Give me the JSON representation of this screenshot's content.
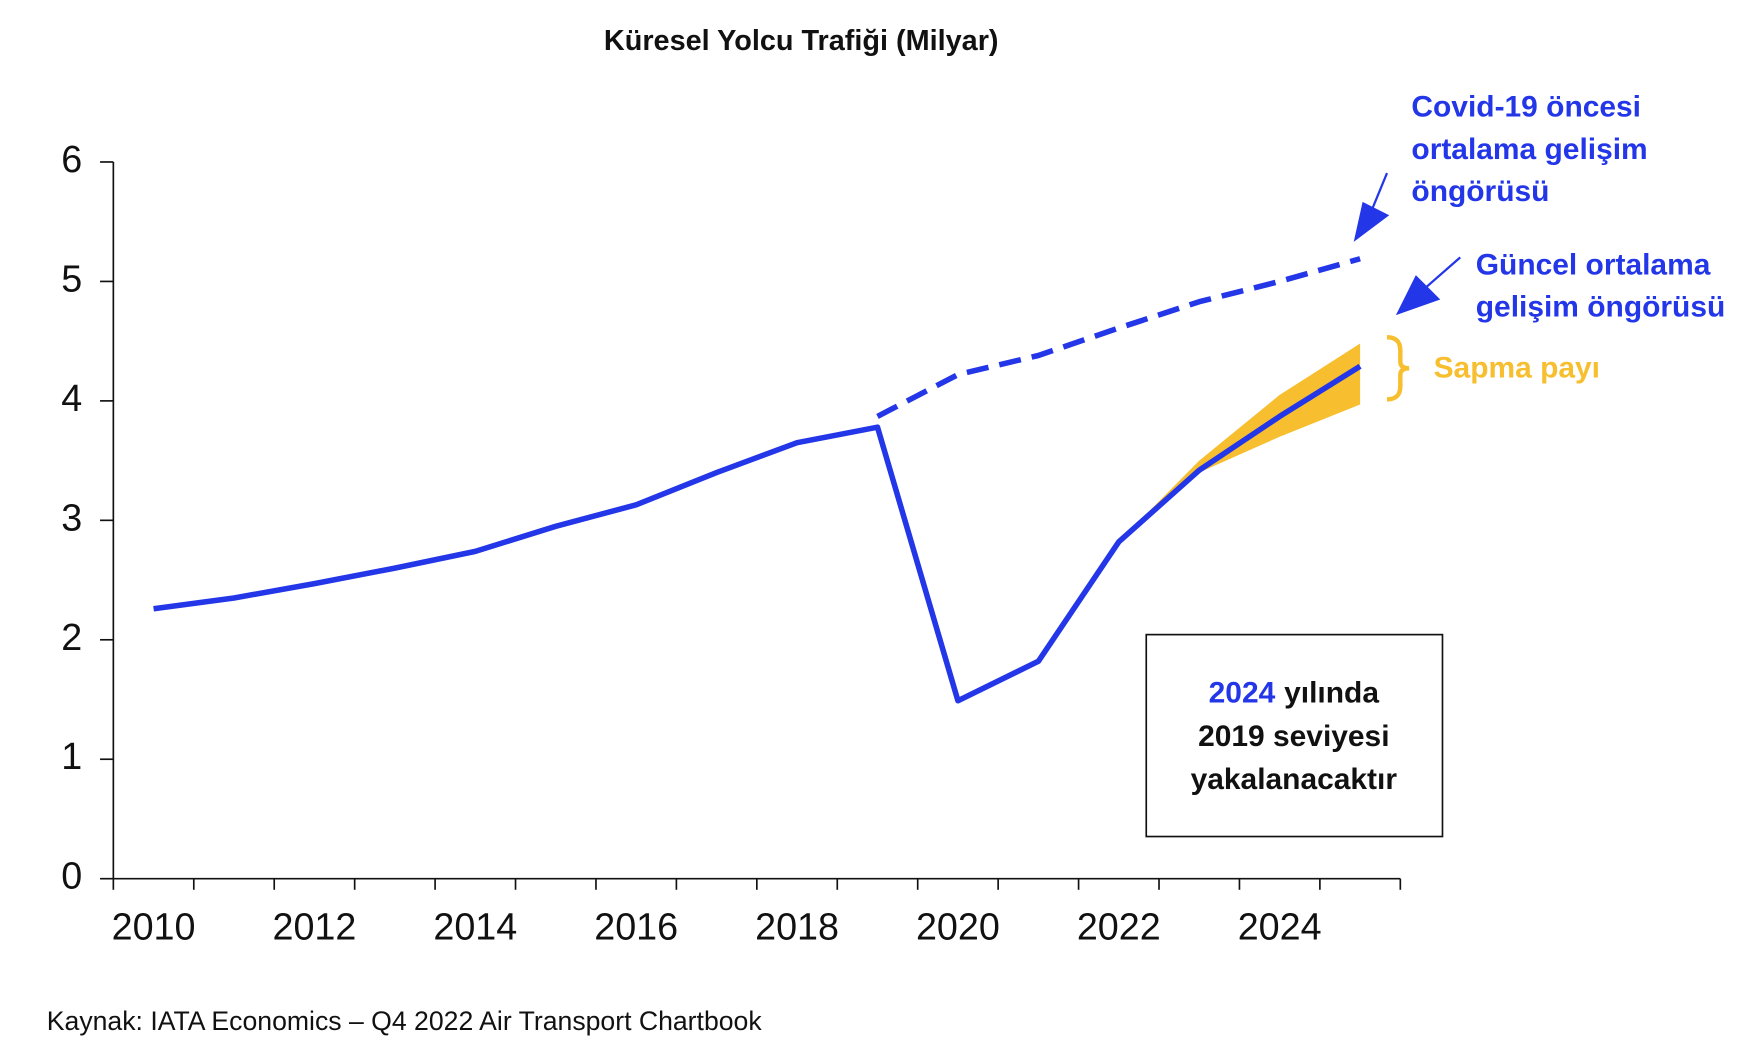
{
  "chart_data": {
    "type": "line",
    "title": "Küresel Yolcu Trafiği (Milyar)",
    "x": [
      2010,
      2011,
      2012,
      2013,
      2014,
      2015,
      2016,
      2017,
      2018,
      2019,
      2020,
      2021,
      2022,
      2023,
      2024,
      2025
    ],
    "series": [
      {
        "name": "Güncel ortalama gelişim öngörüsü",
        "color": "#2336e8",
        "style": "solid",
        "x": [
          2010,
          2011,
          2012,
          2013,
          2014,
          2015,
          2016,
          2017,
          2018,
          2019,
          2020,
          2021,
          2022,
          2023,
          2024,
          2025
        ],
        "values": [
          2.26,
          2.35,
          2.47,
          2.6,
          2.74,
          2.95,
          3.13,
          3.4,
          3.65,
          3.78,
          1.49,
          1.82,
          2.82,
          3.42,
          3.87,
          4.29
        ]
      },
      {
        "name": "Covid-19 öncesi ortalama gelişim öngörüsü",
        "color": "#2336e8",
        "style": "dashed",
        "x": [
          2019,
          2020,
          2021,
          2022,
          2023,
          2024,
          2025
        ],
        "values": [
          3.87,
          4.22,
          4.38,
          4.61,
          4.83,
          5.0,
          5.19
        ]
      }
    ],
    "band": {
      "name": "Sapma payı",
      "color": "#f7bf2f",
      "x": [
        2022,
        2023,
        2024,
        2025
      ],
      "lower": [
        2.82,
        3.4,
        3.7,
        3.97
      ],
      "upper": [
        2.82,
        3.5,
        4.05,
        4.48
      ]
    },
    "xlim": [
      2009.5,
      2025.5
    ],
    "xticks": [
      2010,
      2012,
      2014,
      2016,
      2018,
      2020,
      2022,
      2024
    ],
    "xtick_marks": [
      2009.5,
      2010.5,
      2011.5,
      2012.5,
      2013.5,
      2014.5,
      2015.5,
      2016.5,
      2017.5,
      2018.5,
      2019.5,
      2020.5,
      2021.5,
      2022.5,
      2023.5,
      2024.5,
      2025.5
    ],
    "ylim": [
      0,
      6
    ],
    "yticks": [
      0,
      1,
      2,
      3,
      4,
      5,
      6
    ],
    "box": {
      "highlight": "2024",
      "lines": [
        "yılında",
        "2019 seviyesi",
        "yakalanacaktır"
      ]
    },
    "source": "Kaynak: IATA Economics – Q4 2022 Air Transport Chartbook"
  }
}
